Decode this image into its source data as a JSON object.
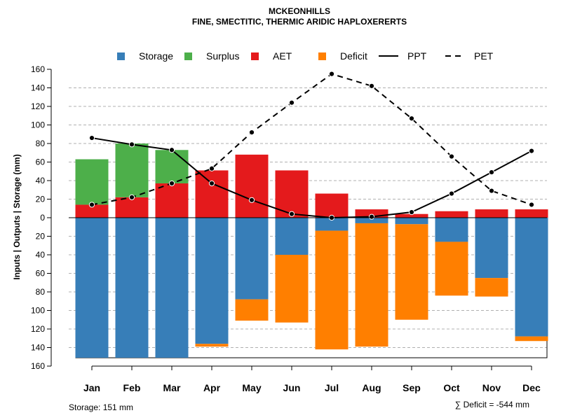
{
  "chart_data": {
    "type": "bar",
    "title": "MCKEONHILLS",
    "subtitle": "FINE, SMECTITIC, THERMIC ARIDIC HAPLOXERERTS",
    "ylabel": "Inputs | Outputs | Storage    (mm)",
    "ylim": [
      -160,
      160
    ],
    "yticks": [
      160,
      140,
      120,
      100,
      80,
      60,
      40,
      20,
      0,
      -20,
      -40,
      -60,
      -80,
      -100,
      -120,
      -140,
      -160
    ],
    "ytick_labels": [
      "160",
      "140",
      "120",
      "100",
      "80",
      "60",
      "40",
      "20",
      "0",
      "20",
      "40",
      "60",
      "80",
      "100",
      "120",
      "140",
      "160"
    ],
    "categories": [
      "Jan",
      "Feb",
      "Mar",
      "Apr",
      "May",
      "Jun",
      "Jul",
      "Aug",
      "Sep",
      "Oct",
      "Nov",
      "Dec"
    ],
    "legend": [
      {
        "label": "Storage",
        "kind": "square",
        "color": "#377EB8"
      },
      {
        "label": "Surplus",
        "kind": "square",
        "color": "#4DAF4A"
      },
      {
        "label": "AET",
        "kind": "square",
        "color": "#E41A1C"
      },
      {
        "label": "Deficit",
        "kind": "square",
        "color": "#FF7F00"
      },
      {
        "label": "PPT",
        "kind": "solid"
      },
      {
        "label": "PET",
        "kind": "dashed"
      }
    ],
    "series": [
      {
        "name": "AET",
        "color": "#E41A1C",
        "values": [
          14,
          22,
          37,
          51,
          68,
          51,
          26,
          9,
          4,
          7,
          9,
          9
        ]
      },
      {
        "name": "Surplus",
        "color": "#4DAF4A",
        "values": [
          49,
          58,
          36,
          0,
          0,
          0,
          0,
          0,
          0,
          0,
          0,
          0
        ]
      },
      {
        "name": "Storage",
        "color": "#377EB8",
        "values": [
          151,
          151,
          151,
          136,
          88,
          40,
          14,
          6,
          7,
          26,
          65,
          128
        ]
      },
      {
        "name": "Deficit",
        "color": "#FF7F00",
        "values": [
          0,
          0,
          0,
          3,
          23,
          73,
          128,
          133,
          103,
          58,
          20,
          5
        ]
      },
      {
        "name": "PPT",
        "type": "line",
        "values": [
          86,
          79,
          73,
          37,
          19,
          4,
          0,
          1,
          6,
          26,
          49,
          72
        ]
      },
      {
        "name": "PET",
        "type": "line",
        "dashed": true,
        "values": [
          14,
          22,
          37,
          53,
          92,
          124,
          155,
          142,
          107,
          66,
          29,
          14
        ]
      }
    ],
    "storage_capacity": 151,
    "grid": true
  },
  "footer": {
    "storage_note": "Storage: 151 mm",
    "deficit_note": "∑ Deficit = -544 mm"
  }
}
